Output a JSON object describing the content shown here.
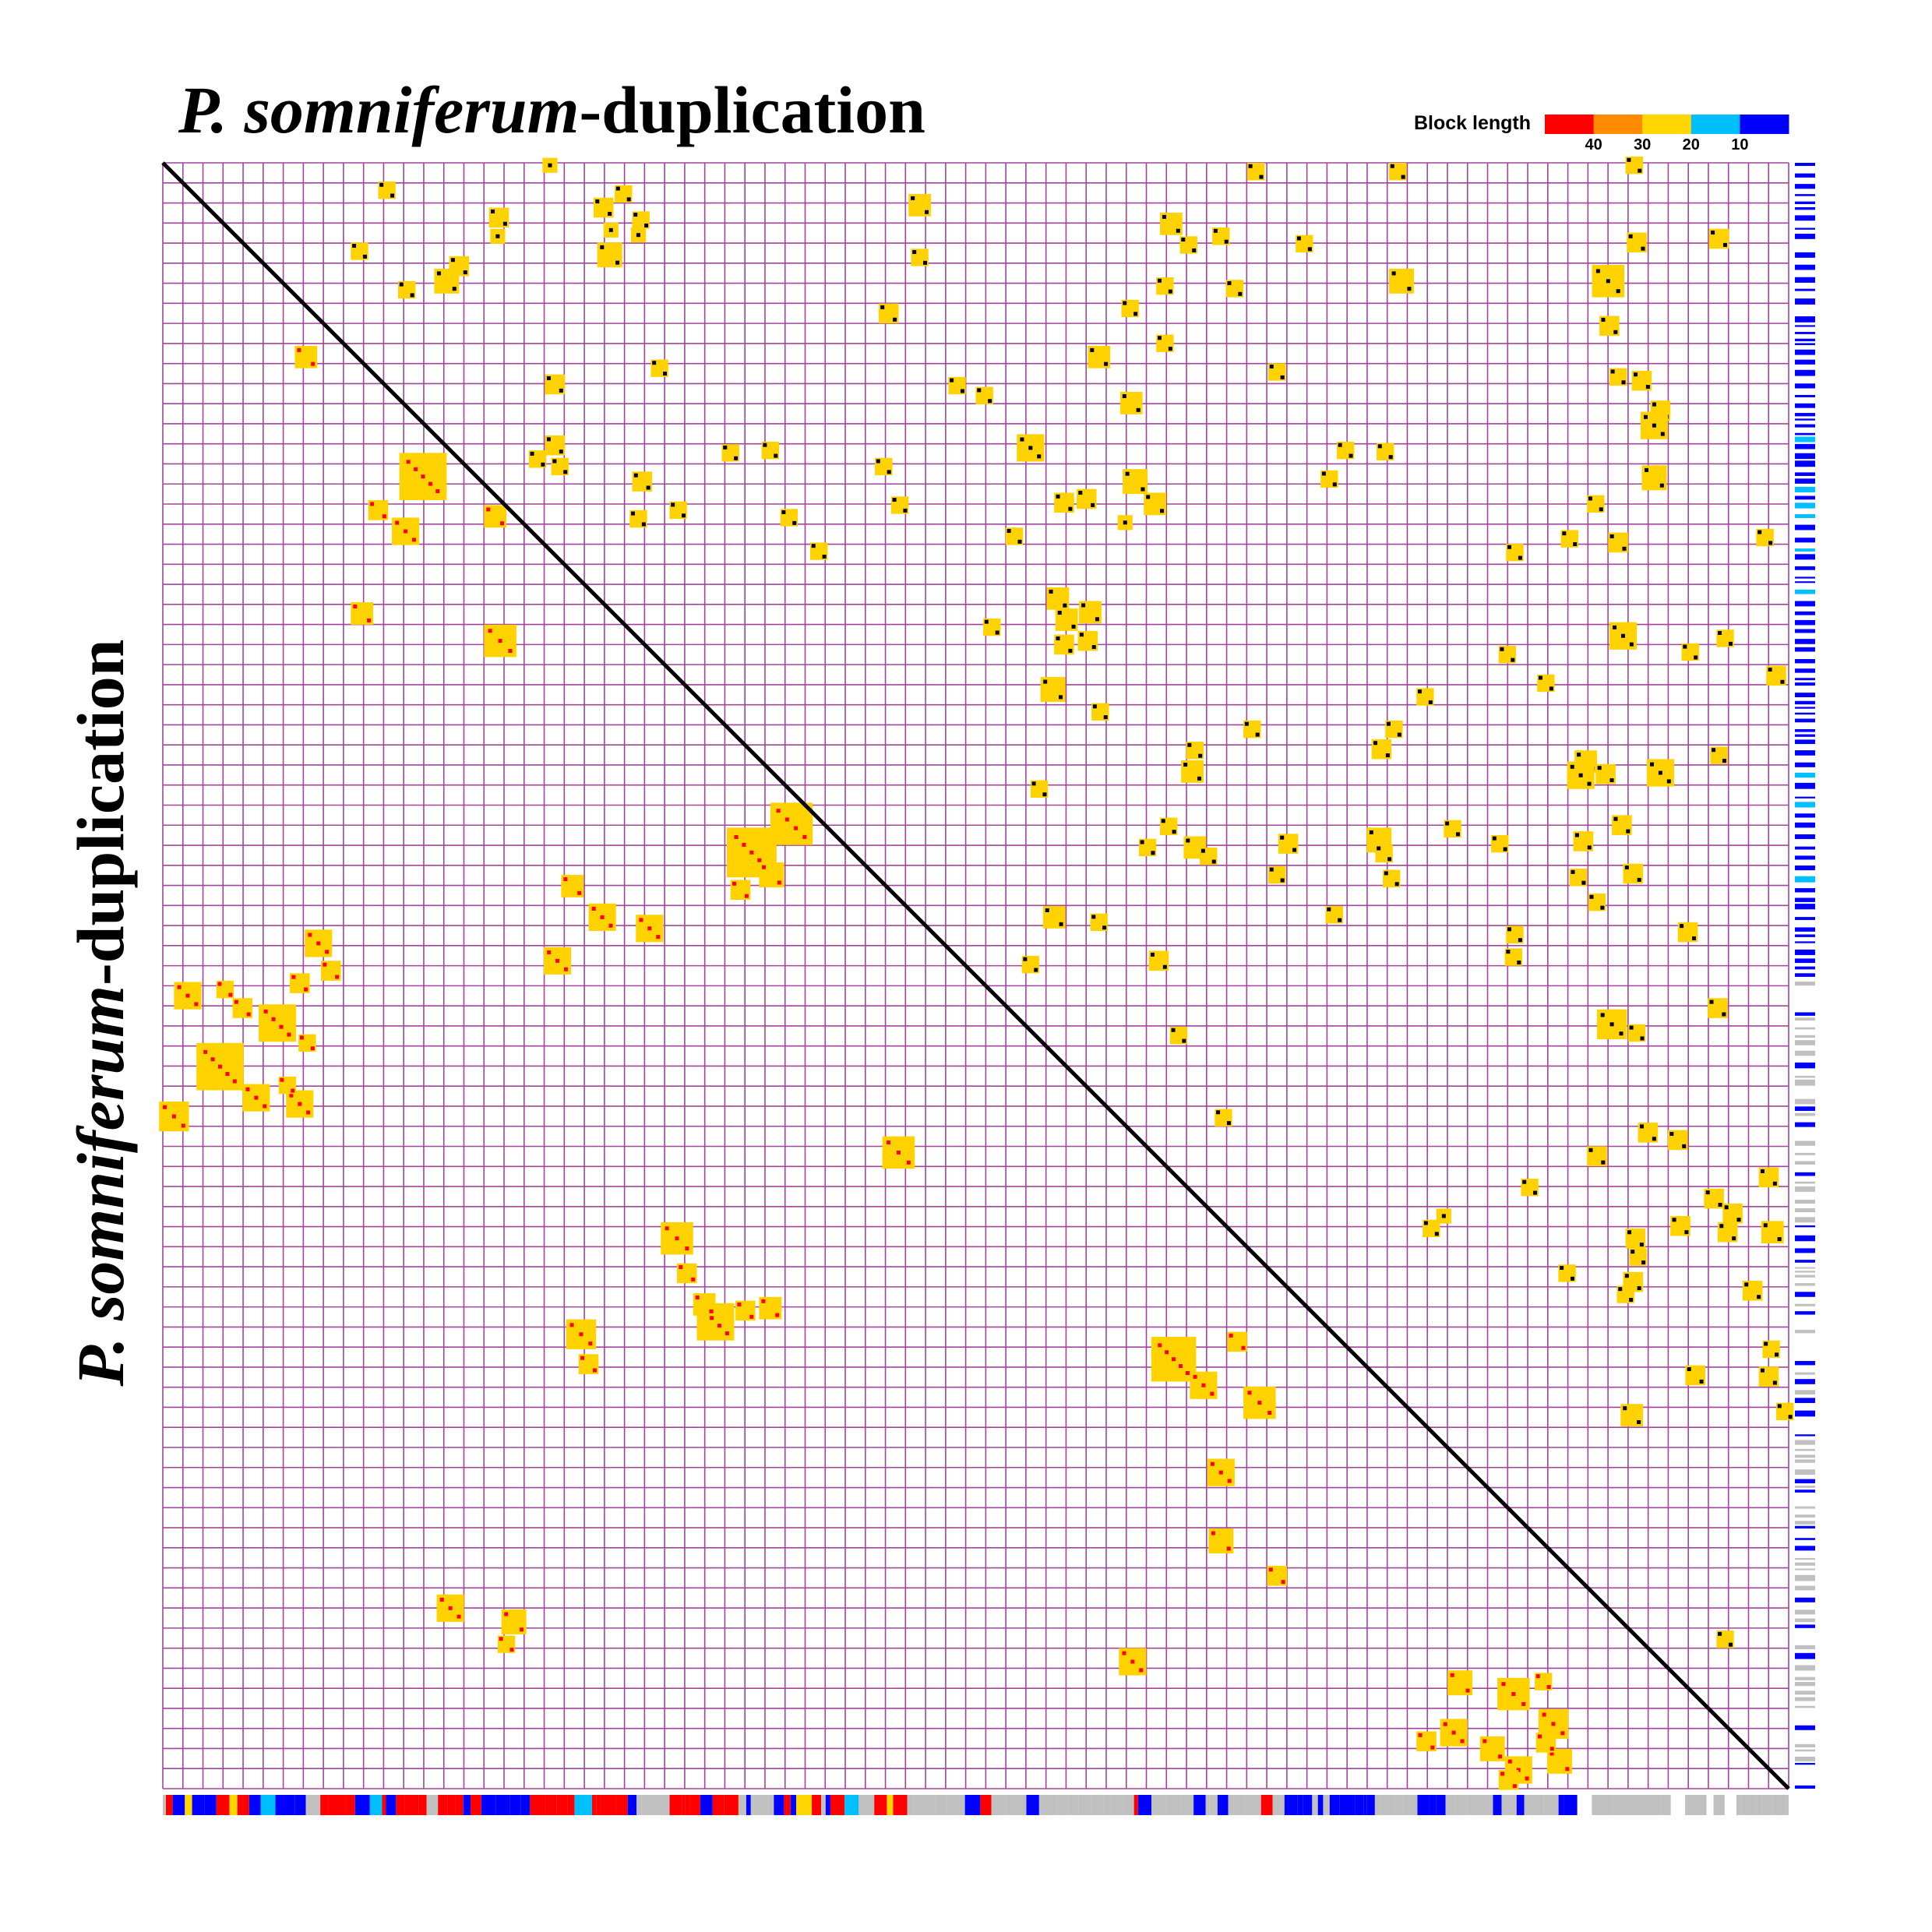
{
  "chart_data": {
    "type": "dotplot",
    "title": [
      "P. somniferum",
      "-duplication"
    ],
    "y_label": [
      "P. somniferum",
      "-duplication"
    ],
    "xlim": [
      0,
      1306
    ],
    "ylim": [
      0,
      1306
    ],
    "grid": true,
    "grid_color": "#a2449a",
    "block_color": "#ffd200",
    "legend": {
      "title": "Block length",
      "colors": [
        "#ff0000",
        "#ff8c00",
        "#ffd700",
        "#00bfff",
        "#0000ff"
      ],
      "ticks": [
        40,
        30,
        20,
        10
      ]
    },
    "series": [
      {
        "color": "#ff0000",
        "blocks": [
          [
            115,
            156,
            18
          ],
          [
            209,
            252,
            38
          ],
          [
            173,
            279,
            16
          ],
          [
            195,
            296,
            22
          ],
          [
            267,
            284,
            18
          ],
          [
            160,
            362,
            18
          ],
          [
            271,
            384,
            26
          ],
          [
            473,
            554,
            40
          ],
          [
            505,
            531,
            34
          ],
          [
            489,
            572,
            20
          ],
          [
            464,
            584,
            16
          ],
          [
            329,
            581,
            18
          ],
          [
            353,
            606,
            22
          ],
          [
            391,
            615,
            22
          ],
          [
            317,
            641,
            22
          ],
          [
            125,
            627,
            22
          ],
          [
            135,
            649,
            16
          ],
          [
            20,
            669,
            22
          ],
          [
            50,
            664,
            14
          ],
          [
            64,
            679,
            16
          ],
          [
            110,
            659,
            16
          ],
          [
            92,
            691,
            30
          ],
          [
            46,
            726,
            38
          ],
          [
            75,
            751,
            22
          ],
          [
            116,
            707,
            14
          ],
          [
            9,
            766,
            24
          ],
          [
            110,
            756,
            22
          ],
          [
            100,
            741,
            14
          ],
          [
            591,
            795,
            26
          ],
          [
            413,
            864,
            26
          ],
          [
            421,
            892,
            16
          ],
          [
            444,
            931,
            30
          ],
          [
            435,
            917,
            18
          ],
          [
            468,
            922,
            16
          ],
          [
            488,
            920,
            18
          ],
          [
            336,
            941,
            24
          ],
          [
            342,
            965,
            16
          ],
          [
            812,
            961,
            36
          ],
          [
            863,
            947,
            16
          ],
          [
            836,
            982,
            22
          ],
          [
            881,
            996,
            26
          ],
          [
            850,
            1052,
            22
          ],
          [
            850,
            1107,
            20
          ],
          [
            895,
            1135,
            16
          ],
          [
            231,
            1161,
            22
          ],
          [
            282,
            1172,
            20
          ],
          [
            276,
            1190,
            14
          ],
          [
            779,
            1204,
            22
          ],
          [
            1042,
            1221,
            20
          ],
          [
            1085,
            1230,
            26
          ],
          [
            1109,
            1220,
            14
          ],
          [
            1015,
            1268,
            16
          ],
          [
            1037,
            1261,
            22
          ],
          [
            1068,
            1274,
            20
          ],
          [
            1117,
            1254,
            24
          ],
          [
            1089,
            1291,
            22
          ],
          [
            1122,
            1284,
            20
          ],
          [
            1111,
            1269,
            16
          ],
          [
            1081,
            1299,
            16
          ]
        ]
      },
      {
        "color": "#000000",
        "blocks": [
          [
            311,
            2,
            12
          ],
          [
            180,
            22,
            14
          ],
          [
            878,
            7,
            14
          ],
          [
            992,
            7,
            14
          ],
          [
            1182,
            2,
            14
          ],
          [
            270,
            44,
            16
          ],
          [
            269,
            59,
            12
          ],
          [
            354,
            36,
            16
          ],
          [
            370,
            25,
            14
          ],
          [
            360,
            54,
            12
          ],
          [
            384,
            46,
            14
          ],
          [
            382,
            58,
            12
          ],
          [
            359,
            74,
            20
          ],
          [
            158,
            71,
            14
          ],
          [
            238,
            83,
            16
          ],
          [
            228,
            95,
            20
          ],
          [
            196,
            102,
            14
          ],
          [
            608,
            34,
            18
          ],
          [
            608,
            76,
            14
          ],
          [
            810,
            49,
            18
          ],
          [
            824,
            66,
            14
          ],
          [
            850,
            59,
            14
          ],
          [
            917,
            65,
            14
          ],
          [
            1184,
            64,
            16
          ],
          [
            1250,
            61,
            16
          ],
          [
            805,
            99,
            14
          ],
          [
            861,
            101,
            14
          ],
          [
            995,
            95,
            20
          ],
          [
            1161,
            95,
            26
          ],
          [
            1162,
            131,
            16
          ],
          [
            583,
            121,
            16
          ],
          [
            777,
            117,
            14
          ],
          [
            805,
            145,
            14
          ],
          [
            399,
            165,
            14
          ],
          [
            752,
            156,
            18
          ],
          [
            895,
            168,
            14
          ],
          [
            1169,
            172,
            14
          ],
          [
            1188,
            175,
            16
          ],
          [
            638,
            179,
            14
          ],
          [
            660,
            187,
            14
          ],
          [
            778,
            193,
            18
          ],
          [
            315,
            178,
            16
          ],
          [
            1203,
            199,
            16
          ],
          [
            1198,
            211,
            22
          ],
          [
            315,
            227,
            16
          ],
          [
            301,
            238,
            14
          ],
          [
            319,
            244,
            14
          ],
          [
            456,
            233,
            14
          ],
          [
            488,
            231,
            14
          ],
          [
            697,
            229,
            22
          ],
          [
            950,
            231,
            14
          ],
          [
            982,
            232,
            14
          ],
          [
            937,
            254,
            14
          ],
          [
            579,
            244,
            14
          ],
          [
            385,
            256,
            16
          ],
          [
            781,
            256,
            20
          ],
          [
            1198,
            253,
            20
          ],
          [
            724,
            273,
            16
          ],
          [
            742,
            270,
            16
          ],
          [
            797,
            274,
            18
          ],
          [
            592,
            275,
            14
          ],
          [
            382,
            286,
            14
          ],
          [
            414,
            279,
            14
          ],
          [
            503,
            285,
            14
          ],
          [
            773,
            289,
            12
          ],
          [
            1151,
            274,
            14
          ],
          [
            684,
            300,
            14
          ],
          [
            1086,
            313,
            14
          ],
          [
            1130,
            302,
            14
          ],
          [
            1169,
            305,
            16
          ],
          [
            1287,
            301,
            14
          ],
          [
            527,
            312,
            14
          ],
          [
            719,
            350,
            18
          ],
          [
            726,
            367,
            18
          ],
          [
            745,
            361,
            18
          ],
          [
            666,
            373,
            14
          ],
          [
            724,
            387,
            16
          ],
          [
            743,
            384,
            16
          ],
          [
            1173,
            380,
            22
          ],
          [
            1080,
            395,
            14
          ],
          [
            1227,
            393,
            14
          ],
          [
            1255,
            382,
            14
          ],
          [
            715,
            423,
            20
          ],
          [
            1111,
            418,
            14
          ],
          [
            1296,
            412,
            16
          ],
          [
            1014,
            429,
            14
          ],
          [
            753,
            441,
            14
          ],
          [
            875,
            455,
            14
          ],
          [
            989,
            455,
            14
          ],
          [
            979,
            471,
            16
          ],
          [
            829,
            472,
            14
          ],
          [
            827,
            489,
            18
          ],
          [
            1143,
            481,
            18
          ],
          [
            1139,
            492,
            22
          ],
          [
            1159,
            491,
            16
          ],
          [
            1203,
            490,
            22
          ],
          [
            1250,
            476,
            14
          ],
          [
            704,
            503,
            14
          ],
          [
            1172,
            532,
            16
          ],
          [
            1036,
            535,
            14
          ],
          [
            808,
            533,
            14
          ],
          [
            791,
            550,
            14
          ],
          [
            977,
            544,
            20
          ],
          [
            981,
            555,
            14
          ],
          [
            1074,
            547,
            14
          ],
          [
            904,
            547,
            16
          ],
          [
            829,
            550,
            18
          ],
          [
            840,
            557,
            14
          ],
          [
            1141,
            545,
            16
          ],
          [
            895,
            572,
            14
          ],
          [
            987,
            575,
            14
          ],
          [
            1137,
            574,
            14
          ],
          [
            1181,
            571,
            16
          ],
          [
            716,
            606,
            18
          ],
          [
            752,
            610,
            14
          ],
          [
            941,
            604,
            14
          ],
          [
            1152,
            594,
            14
          ],
          [
            1086,
            620,
            14
          ],
          [
            1225,
            618,
            16
          ],
          [
            1085,
            638,
            14
          ],
          [
            697,
            644,
            14
          ],
          [
            800,
            641,
            16
          ],
          [
            1164,
            692,
            24
          ],
          [
            1184,
            699,
            14
          ],
          [
            1249,
            679,
            16
          ],
          [
            816,
            701,
            14
          ],
          [
            852,
            767,
            14
          ],
          [
            1193,
            779,
            16
          ],
          [
            1217,
            785,
            16
          ],
          [
            1152,
            798,
            16
          ],
          [
            1098,
            823,
            14
          ],
          [
            1290,
            815,
            16
          ],
          [
            1246,
            832,
            16
          ],
          [
            1261,
            844,
            16
          ],
          [
            1257,
            859,
            16
          ],
          [
            1219,
            854,
            16
          ],
          [
            1183,
            864,
            16
          ],
          [
            1185,
            879,
            14
          ],
          [
            1019,
            856,
            14
          ],
          [
            1029,
            846,
            12
          ],
          [
            1293,
            859,
            18
          ],
          [
            1128,
            892,
            14
          ],
          [
            1181,
            899,
            16
          ],
          [
            1175,
            909,
            14
          ],
          [
            1277,
            906,
            16
          ],
          [
            1292,
            953,
            14
          ],
          [
            1231,
            974,
            16
          ],
          [
            1290,
            975,
            16
          ],
          [
            1180,
            1006,
            18
          ],
          [
            1303,
            1003,
            14
          ],
          [
            1255,
            1186,
            14
          ]
        ]
      }
    ]
  }
}
